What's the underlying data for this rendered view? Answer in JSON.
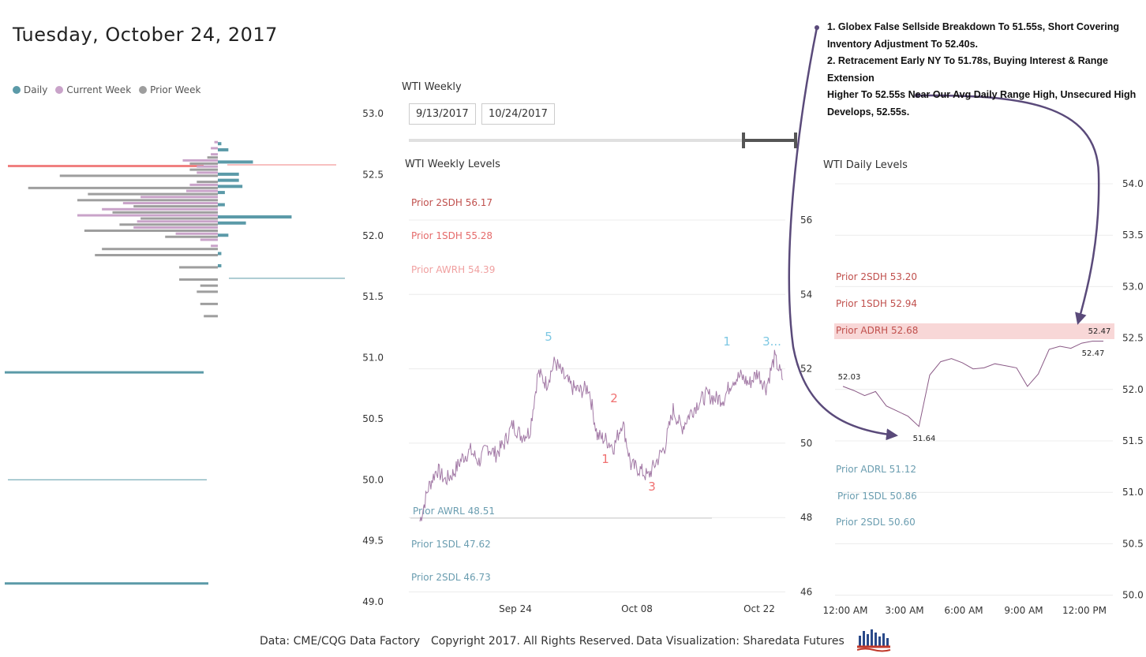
{
  "header": {
    "date": "Tuesday, October 24, 2017"
  },
  "legend": [
    {
      "label": "Daily",
      "color": "#5b9aa8"
    },
    {
      "label": "Current Week",
      "color": "#c9a3c9"
    },
    {
      "label": "Prior Week",
      "color": "#9e9e9e"
    }
  ],
  "weekly": {
    "title": "WTI Weekly",
    "start_date": "9/13/2017",
    "end_date": "10/24/2017",
    "levels_title": "WTI Weekly Levels"
  },
  "daily": {
    "levels_title": "WTI Daily Levels"
  },
  "notes": [
    "1. Globex False Sellside Breakdown To 51.55s, Short Covering",
    "Inventory Adjustment To 52.40s.",
    "2. Retracement Early NY To 51.78s, Buying Interest & Range Extension",
    "Higher To 52.55s Near Our Avg Daily Range High, Unsecured High",
    "Develops, 52.55s."
  ],
  "footer": {
    "source": "Data: CME/CQG Data Factory",
    "copyright": "Copyright 2017. All Rights Reserved.",
    "viz": "Data Visualization: Sharedata Futures"
  },
  "chart_data": [
    {
      "type": "bar",
      "name": "volume-profile",
      "orientation": "horizontal",
      "y_axis": {
        "range": [
          49.0,
          53.0
        ],
        "ticks": [
          53.0,
          52.5,
          52.0,
          51.5,
          51.0,
          50.5,
          50.0,
          49.5,
          49.0
        ]
      },
      "levels": [
        52.75,
        52.7,
        52.65,
        52.6,
        52.55,
        52.5,
        52.45,
        52.4,
        52.35,
        52.3,
        52.25,
        52.2,
        52.15,
        52.1,
        52.05,
        52.0,
        51.95,
        51.9,
        51.85,
        51.8,
        51.75,
        51.7,
        51.65,
        51.6,
        51.55,
        51.5,
        51.45,
        51.4,
        51.35,
        51.3,
        51.25,
        51.2,
        51.15,
        51.1,
        51.05,
        51.0
      ],
      "series": [
        {
          "name": "Daily",
          "values": [
            1,
            3,
            0,
            10,
            0,
            6,
            6,
            7,
            2,
            0,
            2,
            0,
            21,
            8,
            0,
            3,
            0,
            0,
            1,
            0,
            1,
            0,
            0,
            0,
            0,
            0,
            0,
            0,
            0,
            0,
            0,
            0,
            0,
            0,
            0,
            0
          ]
        },
        {
          "name": "Current Week",
          "values": [
            1,
            2,
            2,
            10,
            6,
            6,
            0,
            8,
            9,
            22,
            27,
            33,
            40,
            23,
            24,
            12,
            5,
            2,
            0,
            0,
            0,
            0,
            0,
            0,
            0,
            0,
            0,
            0,
            0,
            0,
            0,
            0,
            0,
            0,
            0,
            0
          ]
        },
        {
          "name": "Prior Week",
          "values": [
            0,
            0,
            3,
            8,
            8,
            45,
            6,
            54,
            37,
            40,
            24,
            30,
            22,
            28,
            38,
            15,
            0,
            33,
            35,
            0,
            11,
            0,
            11,
            5,
            6,
            0,
            5,
            0,
            4,
            0,
            0,
            0,
            0,
            0,
            0,
            0
          ]
        }
      ],
      "level_lines": [
        {
          "value": 52.58,
          "color": "#f08080"
        },
        {
          "value": 51.65,
          "color": "#5b9aa8"
        },
        {
          "value": 50.0,
          "color": "#5b9aa8"
        },
        {
          "value": 49.15,
          "color": "#5b9aa8"
        },
        {
          "value": 50.88,
          "color": "#5b9aa8"
        }
      ]
    },
    {
      "type": "line",
      "title": "WTI Weekly Levels",
      "x": {
        "ticks": [
          "Sep 24",
          "Oct 08",
          "Oct 22"
        ]
      },
      "y_axis": {
        "range": [
          46,
          56
        ],
        "ticks": [
          56,
          54,
          52,
          50,
          48,
          46
        ]
      },
      "series": [
        {
          "values": [
            47.9,
            48.8,
            49.3,
            49.0,
            49.2,
            49.6,
            49.8,
            49.5,
            49.9,
            49.7,
            50.0,
            50.5,
            50.2,
            50.3,
            51.9,
            51.6,
            52.2,
            51.8,
            51.5,
            51.4,
            51.5,
            50.2,
            50.1,
            49.9,
            50.6,
            49.4,
            49.3,
            49.1,
            49.5,
            49.9,
            50.9,
            50.4,
            50.8,
            51.1,
            51.3,
            51.2,
            51.2,
            51.7,
            51.8,
            51.6,
            51.9,
            51.5,
            52.3,
            51.7
          ]
        }
      ],
      "annotations": [
        {
          "text": "5",
          "color": "#7ec8e3"
        },
        {
          "text": "2",
          "color": "#f07070"
        },
        {
          "text": "1",
          "color": "#f07070"
        },
        {
          "text": "3",
          "color": "#f07070"
        },
        {
          "text": "1",
          "color": "#7ec8e3"
        },
        {
          "text": "3...",
          "color": "#7ec8e3"
        }
      ],
      "levels": [
        {
          "label": "Prior 2SDH 56.17",
          "color": "#c0504d"
        },
        {
          "label": "Prior 1SDH 55.28",
          "color": "#e56b6b"
        },
        {
          "label": "Prior AWRH 54.39",
          "color": "#f0a0a0"
        },
        {
          "label": "Prior AWRL 48.51",
          "color": "#6a9db0"
        },
        {
          "label": "Prior 1SDL 47.62",
          "color": "#6a9db0"
        },
        {
          "label": "Prior 2SDL 46.73",
          "color": "#6a9db0"
        }
      ]
    },
    {
      "type": "line",
      "title": "WTI Daily Levels",
      "x": {
        "ticks": [
          "12:00 AM",
          "3:00 AM",
          "6:00 AM",
          "9:00 AM",
          "12:00 PM"
        ]
      },
      "y_axis": {
        "range": [
          50.0,
          54.0
        ],
        "ticks": [
          54.0,
          53.5,
          53.0,
          52.5,
          52.0,
          51.5,
          51.0,
          50.5,
          50.0
        ]
      },
      "series": [
        {
          "values": [
            52.03,
            51.99,
            51.94,
            51.98,
            51.84,
            51.79,
            51.74,
            51.64,
            52.14,
            52.27,
            52.3,
            52.26,
            52.2,
            52.21,
            52.25,
            52.23,
            52.21,
            52.03,
            52.15,
            52.39,
            52.42,
            52.4,
            52.45,
            52.47,
            52.47
          ]
        }
      ],
      "point_labels": [
        "52.03",
        "51.64",
        "52.47",
        "52.47"
      ],
      "levels": [
        {
          "label": "Prior 2SDH 53.20",
          "color": "#c0504d"
        },
        {
          "label": "Prior 1SDH 52.94",
          "color": "#c0504d"
        },
        {
          "label": "Prior ADRH 52.68",
          "color": "#c0504d"
        },
        {
          "label": "Prior ADRL 51.12",
          "color": "#6a9db0"
        },
        {
          "label": "Prior 1SDL 50.86",
          "color": "#6a9db0"
        },
        {
          "label": "Prior 2SDL 50.60",
          "color": "#6a9db0"
        }
      ]
    }
  ]
}
